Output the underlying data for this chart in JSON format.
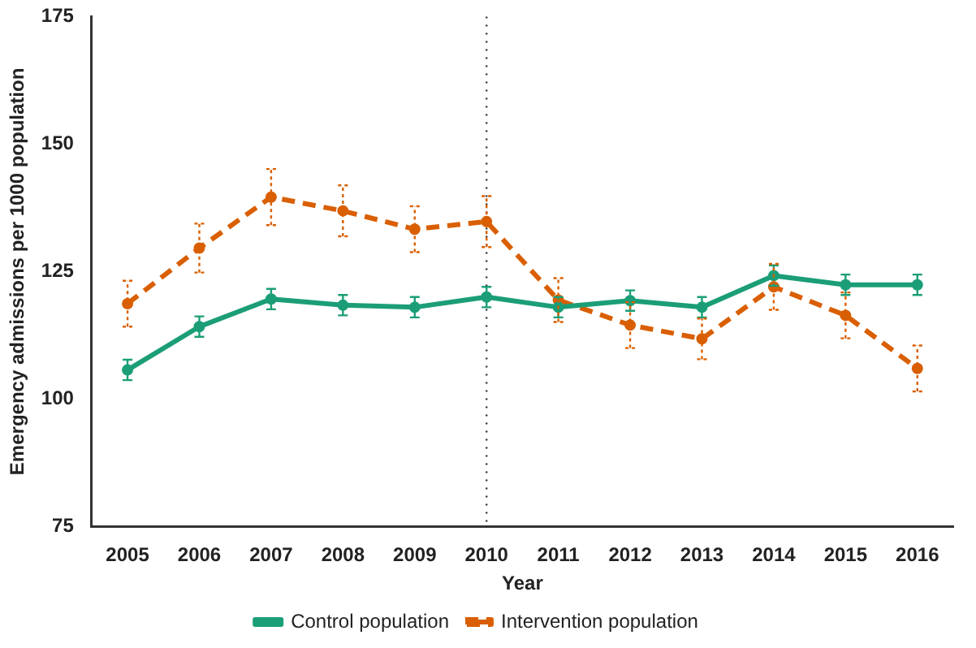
{
  "chart_data": {
    "type": "line",
    "xlabel": "Year",
    "ylabel": "Emergency admissions per 1000 population",
    "categories": [
      "2005",
      "2006",
      "2007",
      "2008",
      "2009",
      "2010",
      "2011",
      "2012",
      "2013",
      "2014",
      "2015",
      "2016"
    ],
    "series": [
      {
        "name": "Control population",
        "color": "#1b9e77",
        "line_style": "solid",
        "values": [
          105.7,
          114.2,
          119.6,
          118.4,
          118,
          120,
          118,
          119.3,
          118,
          124.2,
          122.4,
          122.4
        ],
        "errors": [
          2,
          2,
          2,
          2,
          2,
          2,
          2,
          2,
          2,
          2,
          2,
          2
        ]
      },
      {
        "name": "Intervention population",
        "color": "#d95f02",
        "line_style": "dashed",
        "values": [
          118.7,
          129.6,
          139.6,
          136.9,
          133.3,
          134.8,
          119.4,
          114.5,
          111.8,
          122,
          116.4,
          106
        ],
        "errors": [
          4.5,
          4.8,
          5.5,
          5,
          4.5,
          5,
          4.3,
          4.5,
          4,
          4.5,
          4.5,
          4.5
        ]
      }
    ],
    "marker": "circle",
    "ylim": [
      75,
      175
    ],
    "yticks": [
      75,
      100,
      125,
      150,
      175
    ],
    "grid": false,
    "legend": "bottom",
    "ref_lines": [
      {
        "axis": "x",
        "value": "2010",
        "line_style": "dotted",
        "color": "#333333"
      }
    ]
  }
}
